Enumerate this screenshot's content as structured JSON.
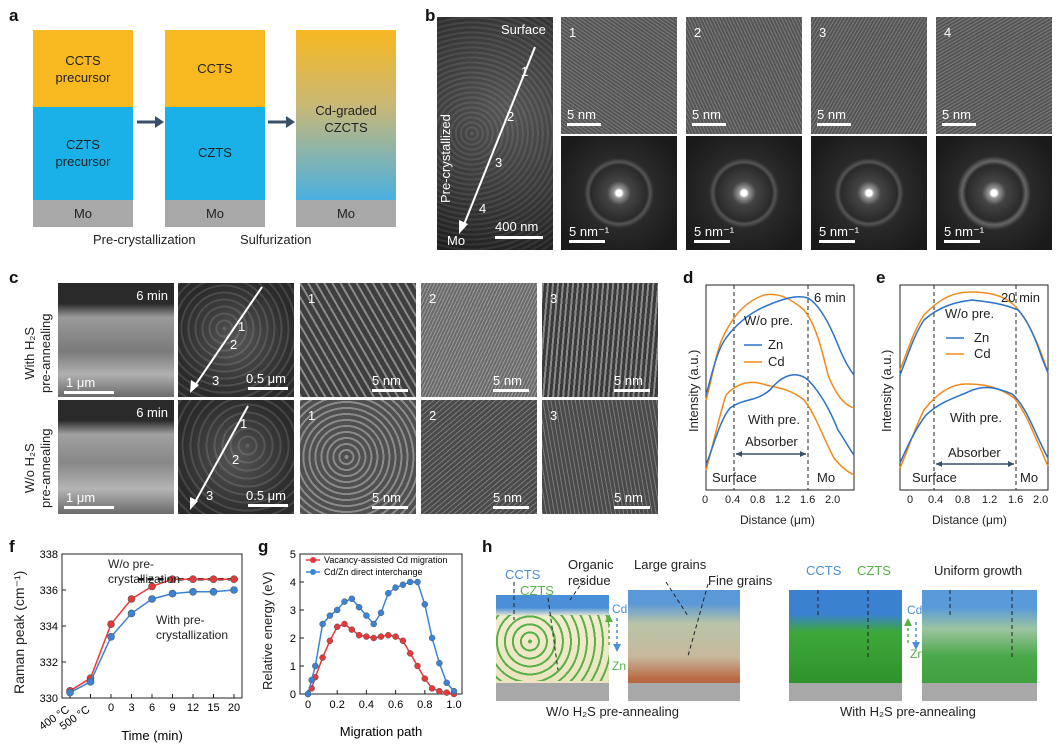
{
  "panel_a": {
    "label": "a",
    "stack1": {
      "top": "CCTS\nprecursor",
      "mid": "CZTS\nprecursor",
      "bottom": "Mo"
    },
    "stack2": {
      "top": "CCTS",
      "mid": "CZTS",
      "bottom": "Mo"
    },
    "stack3": {
      "graded": "Cd-graded\nCZCTS",
      "bottom": "Mo"
    },
    "step1": "Pre-crystallization",
    "step2": "Sulfurization",
    "colors": {
      "ccts": "#f8b820",
      "czts": "#1ab0e8",
      "mo": "#a8a8a8",
      "arrow": "#3a5068"
    }
  },
  "panel_b": {
    "label": "b",
    "surface": "Surface",
    "side": "Pre-crystallized",
    "mo": "Mo",
    "scale_main": "400 nm",
    "points": [
      "1",
      "2",
      "3",
      "4"
    ],
    "hr_labels": [
      "1",
      "2",
      "3",
      "4"
    ],
    "hr_scale": "5 nm",
    "fft_scale": "5 nm⁻¹"
  },
  "panel_c": {
    "label": "c",
    "row1_label": "With H₂S\npre-annealing",
    "row2_label": "W/o H₂S\npre-annealing",
    "time": "6 min",
    "scale_cross": "1 μm",
    "scale_plan": "0.5 μm",
    "points": [
      "1",
      "2",
      "3"
    ],
    "hr_labels": [
      "1",
      "2",
      "3"
    ],
    "hr_scale": "5 nm"
  },
  "panel_d": {
    "label": "d",
    "time": "6 min",
    "wo": "W/o pre.",
    "with": "With pre.",
    "legend": [
      "Zn",
      "Cd"
    ],
    "surface": "Surface",
    "absorber": "Absorber",
    "mo": "Mo",
    "ylabel": "Intensity (a.u.)",
    "xlabel": "Distance (μm)",
    "xticks": [
      "0",
      "0.4",
      "0.8",
      "1.2",
      "1.6",
      "2.0"
    ]
  },
  "panel_e": {
    "label": "e",
    "time": "20 min",
    "wo": "W/o pre.",
    "with": "With pre.",
    "legend": [
      "Zn",
      "Cd"
    ],
    "surface": "Surface",
    "absorber": "Absorber",
    "mo": "Mo",
    "ylabel": "Intensity (a.u.)",
    "xlabel": "Distance (μm)",
    "xticks": [
      "0",
      "0.4",
      "0.8",
      "1.2",
      "1.6",
      "2.0"
    ]
  },
  "chart_data": [
    {
      "panel": "f",
      "type": "line",
      "categories": [
        "400 °C",
        "500 °C",
        "0",
        "3",
        "6",
        "9",
        "12",
        "15",
        "20"
      ],
      "series": [
        {
          "name": "W/o pre-crystallization",
          "color": "#e83838",
          "values": [
            330.4,
            331.1,
            334.1,
            335.5,
            336.2,
            336.6,
            336.6,
            336.6,
            336.6
          ]
        },
        {
          "name": "With pre-crystallization",
          "color": "#3a84d8",
          "values": [
            330.3,
            330.9,
            333.4,
            334.7,
            335.5,
            335.8,
            335.9,
            335.9,
            336.0
          ]
        }
      ],
      "ylim": [
        330,
        338
      ],
      "yticks": [
        "330",
        "332",
        "334",
        "336",
        "338"
      ],
      "ylabel": "Raman peak (cm⁻¹)",
      "xlabel": "Time (min)",
      "annotations": [
        "W/o pre-\ncrystallization",
        "With pre-\ncrystallization"
      ]
    },
    {
      "panel": "g",
      "type": "line",
      "x": [
        0,
        0.025,
        0.05,
        0.1,
        0.15,
        0.2,
        0.25,
        0.3,
        0.35,
        0.4,
        0.45,
        0.5,
        0.55,
        0.6,
        0.65,
        0.7,
        0.75,
        0.8,
        0.85,
        0.9,
        0.95,
        1.0
      ],
      "series": [
        {
          "name": "Vacancy-assisted Cd migration",
          "color": "#e83838",
          "values": [
            0.0,
            0.2,
            0.6,
            1.3,
            1.9,
            2.4,
            2.5,
            2.3,
            2.1,
            2.05,
            2.0,
            2.05,
            2.1,
            2.05,
            1.9,
            1.45,
            1.0,
            0.55,
            0.2,
            0.1,
            0.05,
            0.0
          ]
        },
        {
          "name": "Cd/Zn direct interchange",
          "color": "#3a84d8",
          "values": [
            0.0,
            0.5,
            1.0,
            2.5,
            2.8,
            3.0,
            3.3,
            3.4,
            3.1,
            2.8,
            2.5,
            2.9,
            3.6,
            3.8,
            3.9,
            4.0,
            4.0,
            3.2,
            2.0,
            1.1,
            0.4,
            0.1
          ]
        }
      ],
      "xlim": [
        0,
        1.0
      ],
      "ylim": [
        0,
        5
      ],
      "xticks": [
        "0",
        "0.2",
        "0.4",
        "0.6",
        "0.8",
        "1.0"
      ],
      "yticks": [
        "0",
        "1",
        "2",
        "3",
        "4",
        "5"
      ],
      "ylabel": "Relative energy (eV)",
      "xlabel": "Migration path"
    }
  ],
  "panel_f_label": "f",
  "panel_g_label": "g",
  "panel_h": {
    "label": "h",
    "left_caption": "W/o H₂S pre-annealing",
    "right_caption": "With H₂S pre-annealing",
    "ccts": "CCTS",
    "czts": "CZTS",
    "organic": "Organic\nresidue",
    "large": "Large grains",
    "fine": "Fine grains",
    "uniform": "Uniform growth",
    "cd": "Cd",
    "zn": "Zn"
  }
}
